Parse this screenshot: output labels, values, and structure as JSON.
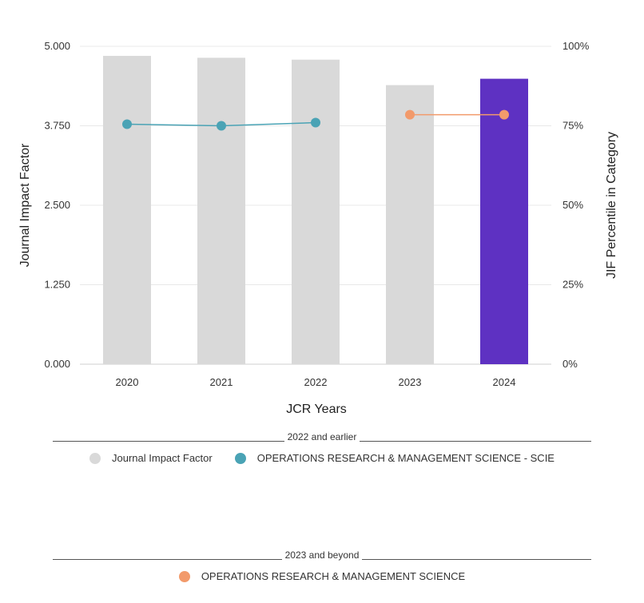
{
  "chart_data": {
    "type": "bar",
    "categories": [
      "2020",
      "2021",
      "2022",
      "2023",
      "2024"
    ],
    "series": [
      {
        "name": "Journal Impact Factor",
        "kind": "bar",
        "axis": "left",
        "values": [
          4.85,
          4.82,
          4.79,
          4.39,
          4.49
        ],
        "colors": [
          "#d9d9d9",
          "#d9d9d9",
          "#d9d9d9",
          "#d9d9d9",
          "#5e31c2"
        ]
      },
      {
        "name": "OPERATIONS RESEARCH & MANAGEMENT SCIENCE - SCIE",
        "kind": "line",
        "axis": "right",
        "color": "#4aa3b5",
        "points": [
          [
            "2020",
            75.5
          ],
          [
            "2021",
            75.0
          ],
          [
            "2022",
            76.0
          ]
        ]
      },
      {
        "name": "OPERATIONS RESEARCH & MANAGEMENT SCIENCE",
        "kind": "line",
        "axis": "right",
        "color": "#f29a6b",
        "points": [
          [
            "2023",
            78.5
          ],
          [
            "2024",
            78.5
          ]
        ]
      }
    ],
    "xlabel": "JCR Years",
    "ylabel": "Journal Impact Factor",
    "ylabel_right": "JIF Percentile in Category",
    "ylim": [
      0,
      5
    ],
    "ylim_right": [
      0,
      100
    ],
    "yticks": [
      "0.000",
      "1.250",
      "2.500",
      "3.750",
      "5.000"
    ],
    "yticks_right": [
      "0%",
      "25%",
      "50%",
      "75%",
      "100%"
    ],
    "grid": true
  },
  "legend": {
    "earlier": {
      "heading": "2022 and earlier",
      "items": [
        {
          "label": "Journal Impact Factor",
          "color": "#d9d9d9"
        },
        {
          "label": "OPERATIONS RESEARCH & MANAGEMENT SCIENCE - SCIE",
          "color": "#4aa3b5"
        }
      ]
    },
    "beyond": {
      "heading": "2023 and beyond",
      "items": [
        {
          "label": "OPERATIONS RESEARCH & MANAGEMENT SCIENCE",
          "color": "#f29a6b"
        }
      ]
    }
  }
}
